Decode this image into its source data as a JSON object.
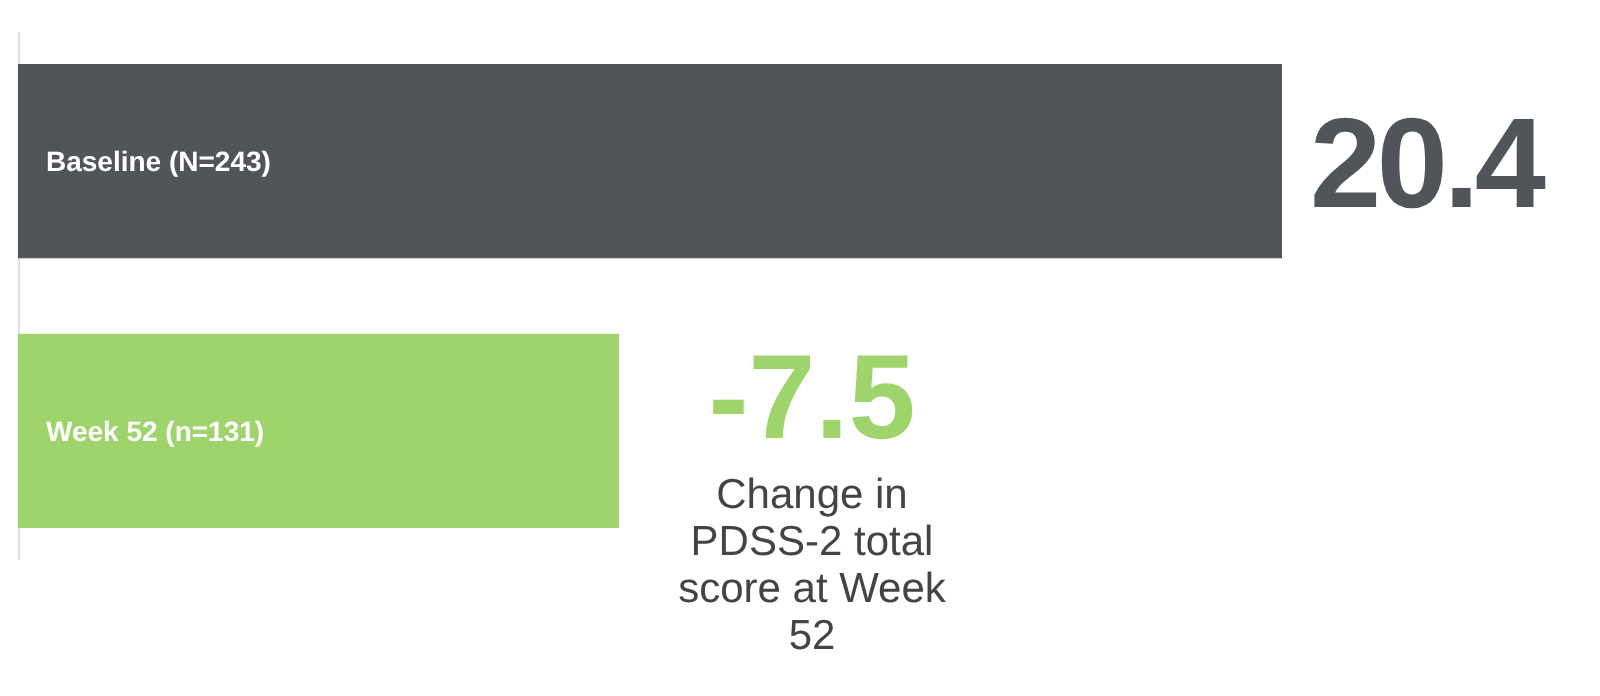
{
  "chart_data": {
    "type": "bar",
    "orientation": "horizontal",
    "categories": [
      "Baseline (N=243)",
      "Week 52 (n=131)"
    ],
    "values": [
      20.4,
      9.7
    ],
    "colors": [
      "#515559",
      "#9fd46c"
    ],
    "value_labels": [
      "20.4",
      null
    ],
    "annotations": [
      "-7.5",
      "Change in PDSS-2 total score at Week 52"
    ]
  }
}
